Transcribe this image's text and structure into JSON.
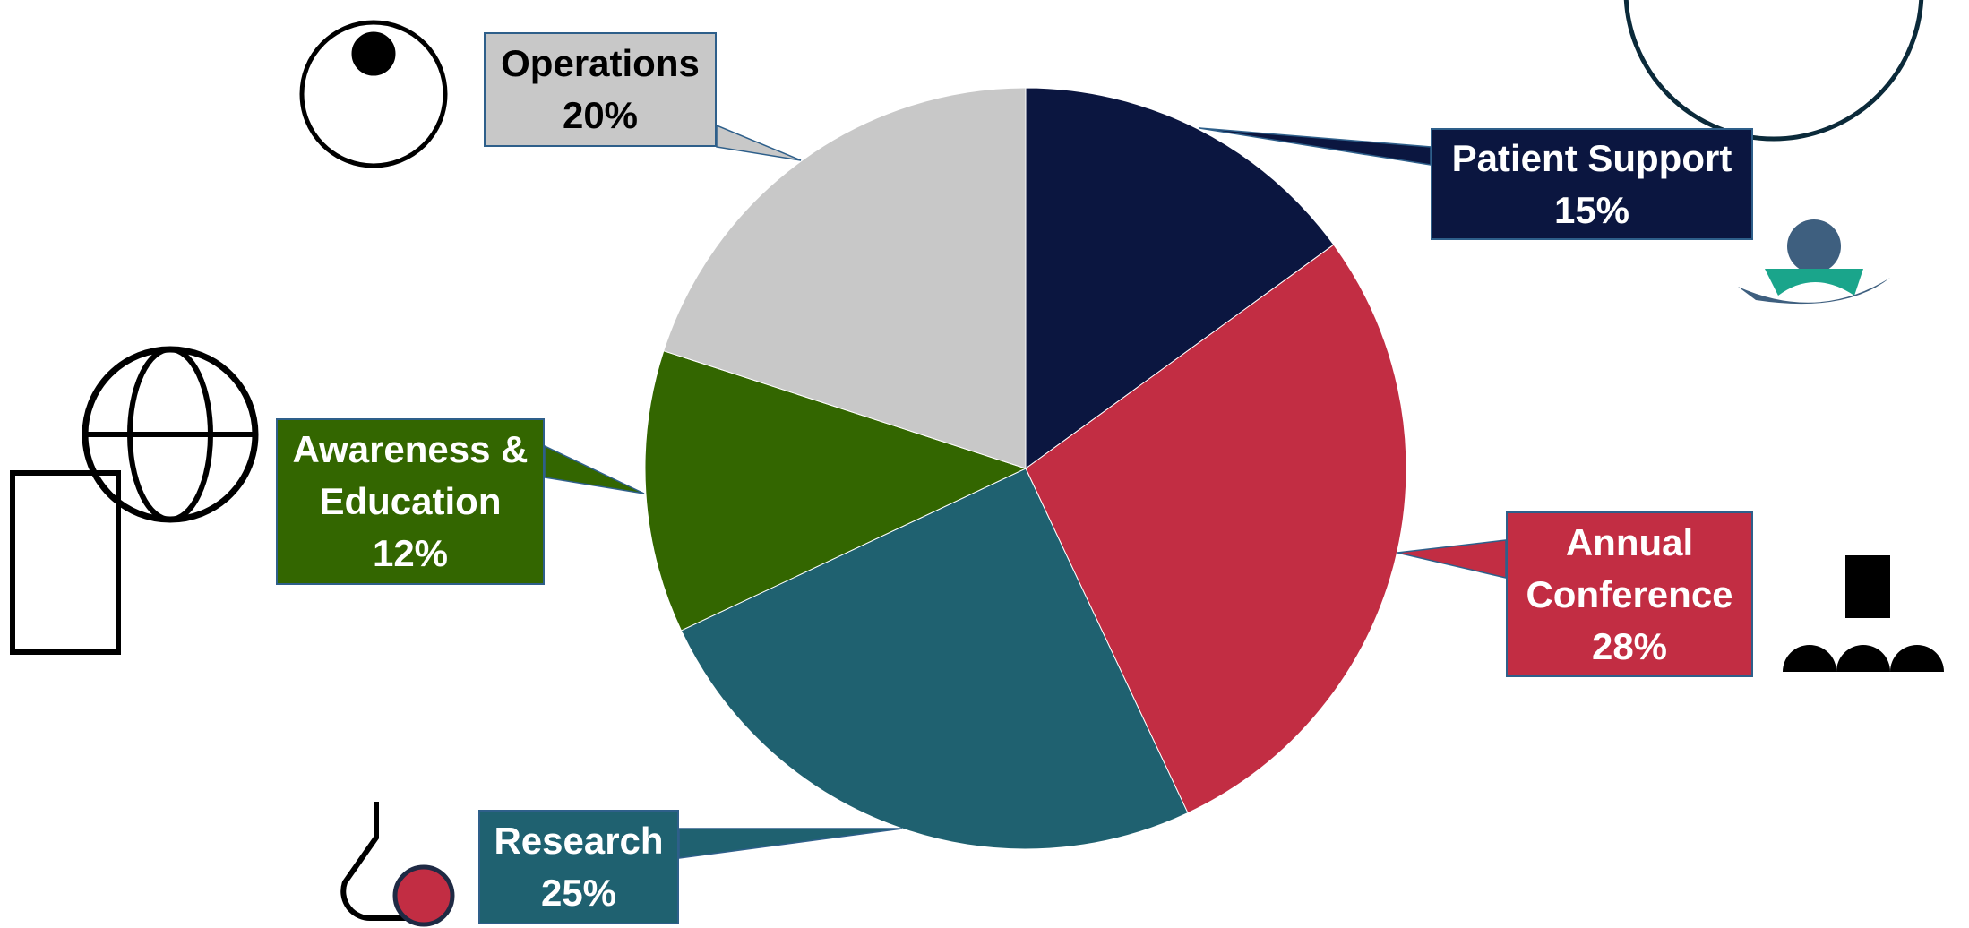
{
  "chart_data": {
    "type": "pie",
    "categories": [
      "Patient Support",
      "Annual Conference",
      "Research",
      "Awareness & Education",
      "Operations"
    ],
    "values": [
      15,
      28,
      25,
      12,
      20
    ],
    "value_labels": [
      "15%",
      "28%",
      "25%",
      "12%",
      "20%"
    ],
    "colors": [
      "#0b1640",
      "#c22d43",
      "#1f6170",
      "#336600",
      "#c8c8c8"
    ]
  }
}
